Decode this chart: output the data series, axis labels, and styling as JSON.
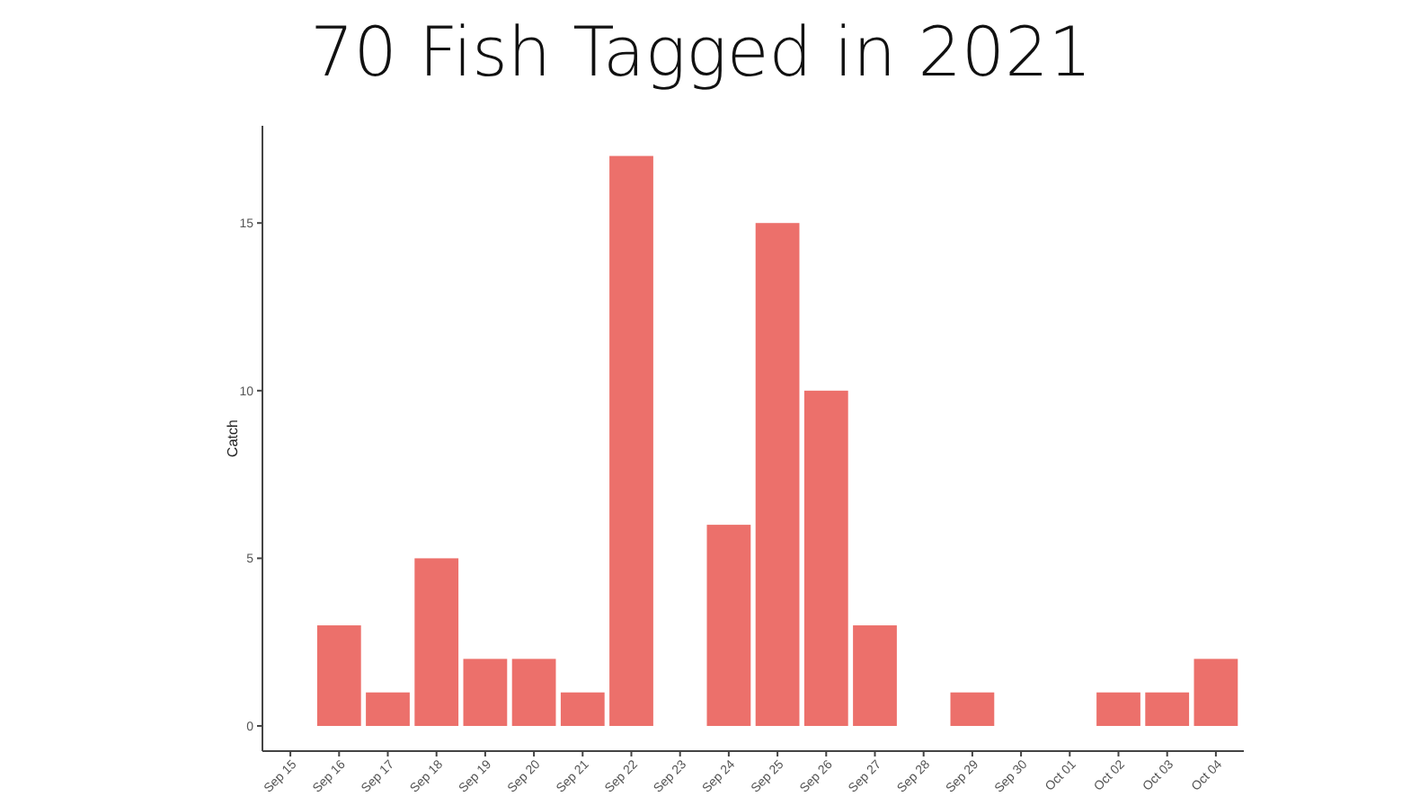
{
  "chart_data": {
    "type": "bar",
    "title": "70 Fish Tagged in 2021",
    "ylabel": "Catch",
    "categories": [
      "Sep 15",
      "Sep 16",
      "Sep 17",
      "Sep 18",
      "Sep 19",
      "Sep 20",
      "Sep 21",
      "Sep 22",
      "Sep 23",
      "Sep 24",
      "Sep 25",
      "Sep 26",
      "Sep 27",
      "Sep 28",
      "Sep 29",
      "Sep 30",
      "Oct 01",
      "Oct 02",
      "Oct 03",
      "Oct 04"
    ],
    "values": [
      null,
      3,
      1,
      5,
      2,
      2,
      1,
      17,
      null,
      6,
      15,
      10,
      3,
      null,
      1,
      null,
      null,
      1,
      1,
      2
    ],
    "color": "#ec706b",
    "ylim": [
      -0.75,
      17.9
    ],
    "yticks": [
      0,
      5,
      10,
      15
    ],
    "grid": false
  }
}
